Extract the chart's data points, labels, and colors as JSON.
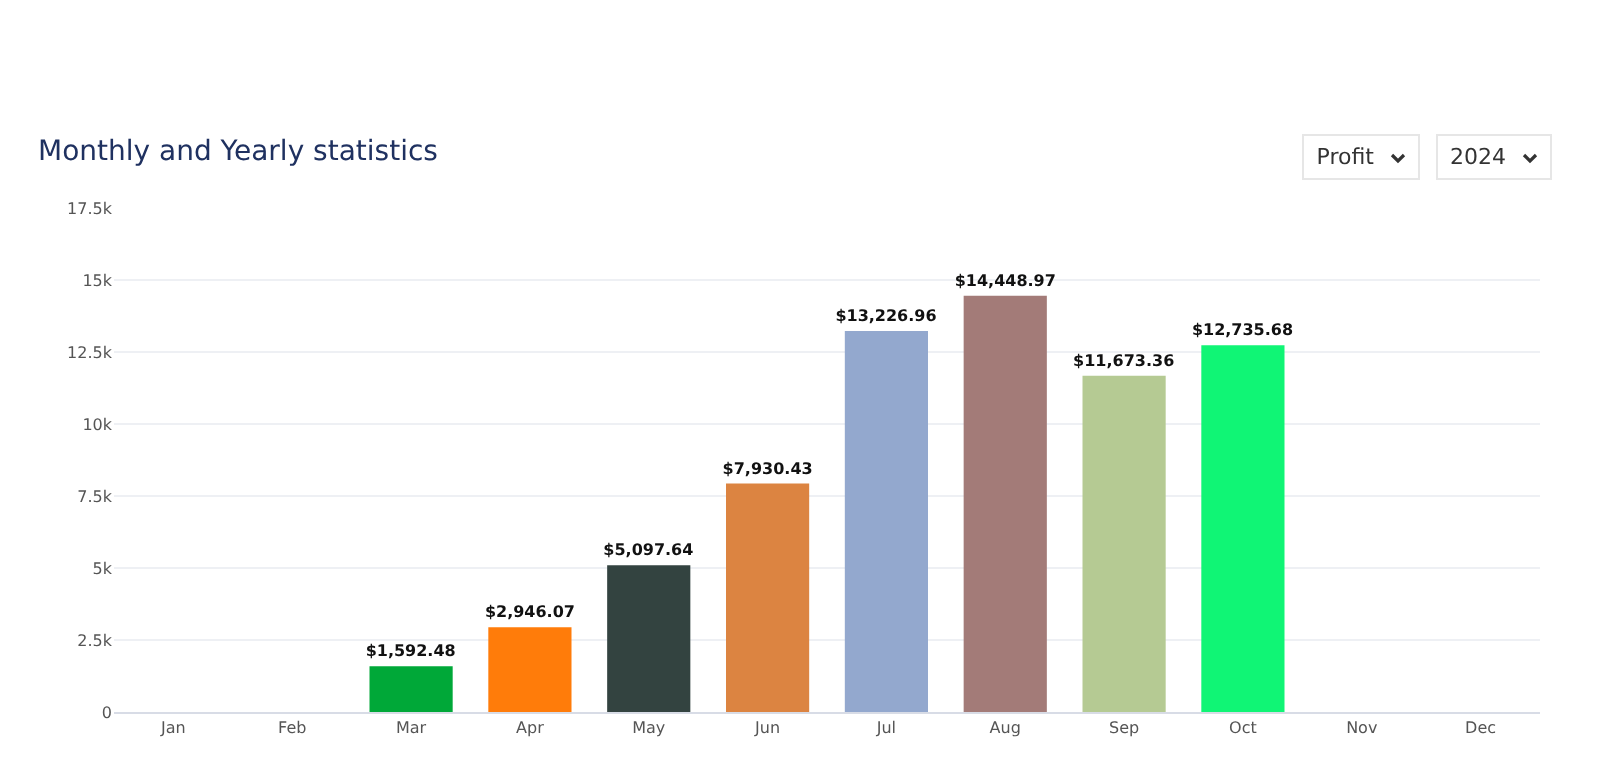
{
  "chart_data": {
    "type": "bar",
    "title": "Monthly and Yearly statistics",
    "annotations": [
      "Profit",
      "2024"
    ],
    "categories": [
      "Jan",
      "Feb",
      "Mar",
      "Apr",
      "May",
      "Jun",
      "Jul",
      "Aug",
      "Sep",
      "Oct",
      "Nov",
      "Dec"
    ],
    "values": [
      null,
      null,
      1592.48,
      2946.07,
      5097.64,
      7930.43,
      13226.96,
      14448.97,
      11673.36,
      12735.68,
      null,
      null
    ],
    "value_labels": [
      null,
      null,
      "$1,592.48",
      "$2,946.07",
      "$5,097.64",
      "$7,930.43",
      "$13,226.96",
      "$14,448.97",
      "$11,673.36",
      "$12,735.68",
      null,
      null
    ],
    "colors": [
      "#00a0e4",
      "#00a0e4",
      "#00a838",
      "#ff7c0a",
      "#334340",
      "#dc8441",
      "#93a8ce",
      "#a37b78",
      "#b5ca93",
      "#10f575",
      "#00a0e4",
      "#00a0e4"
    ],
    "ylim": [
      0,
      17500
    ],
    "yticks": [
      0,
      {
        "value": 2500,
        "label": "2.5k"
      },
      {
        "value": 5000,
        "label": "5k"
      },
      {
        "value": 7500,
        "label": "7.5k"
      },
      {
        "value": 10000,
        "label": "10k"
      },
      {
        "value": 12500,
        "label": "12.5k"
      },
      {
        "value": 15000,
        "label": "15k"
      },
      {
        "value": 17500,
        "label": "17.5k"
      }
    ],
    "grid": "y"
  }
}
